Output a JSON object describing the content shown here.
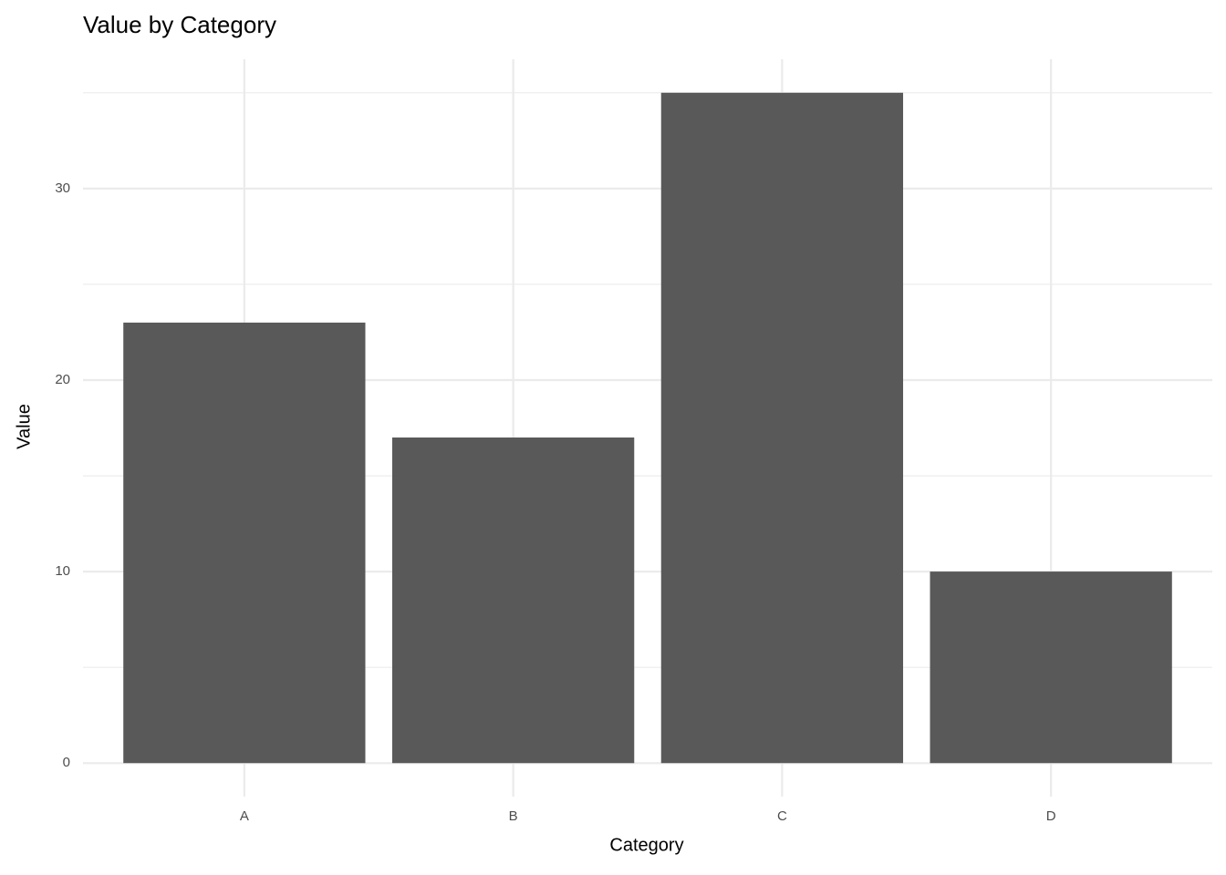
{
  "chart_data": {
    "type": "bar",
    "title": "Value by Category",
    "x_label": "Category",
    "y_label": "Value",
    "categories": [
      "A",
      "B",
      "C",
      "D"
    ],
    "values": [
      23,
      17,
      35,
      10
    ],
    "color": "#595959",
    "ylim": [
      -1.75,
      36.75
    ],
    "yticks": [
      0,
      10,
      20,
      30
    ],
    "minor_yticks": [
      5,
      15,
      25,
      35
    ],
    "grid": true
  }
}
